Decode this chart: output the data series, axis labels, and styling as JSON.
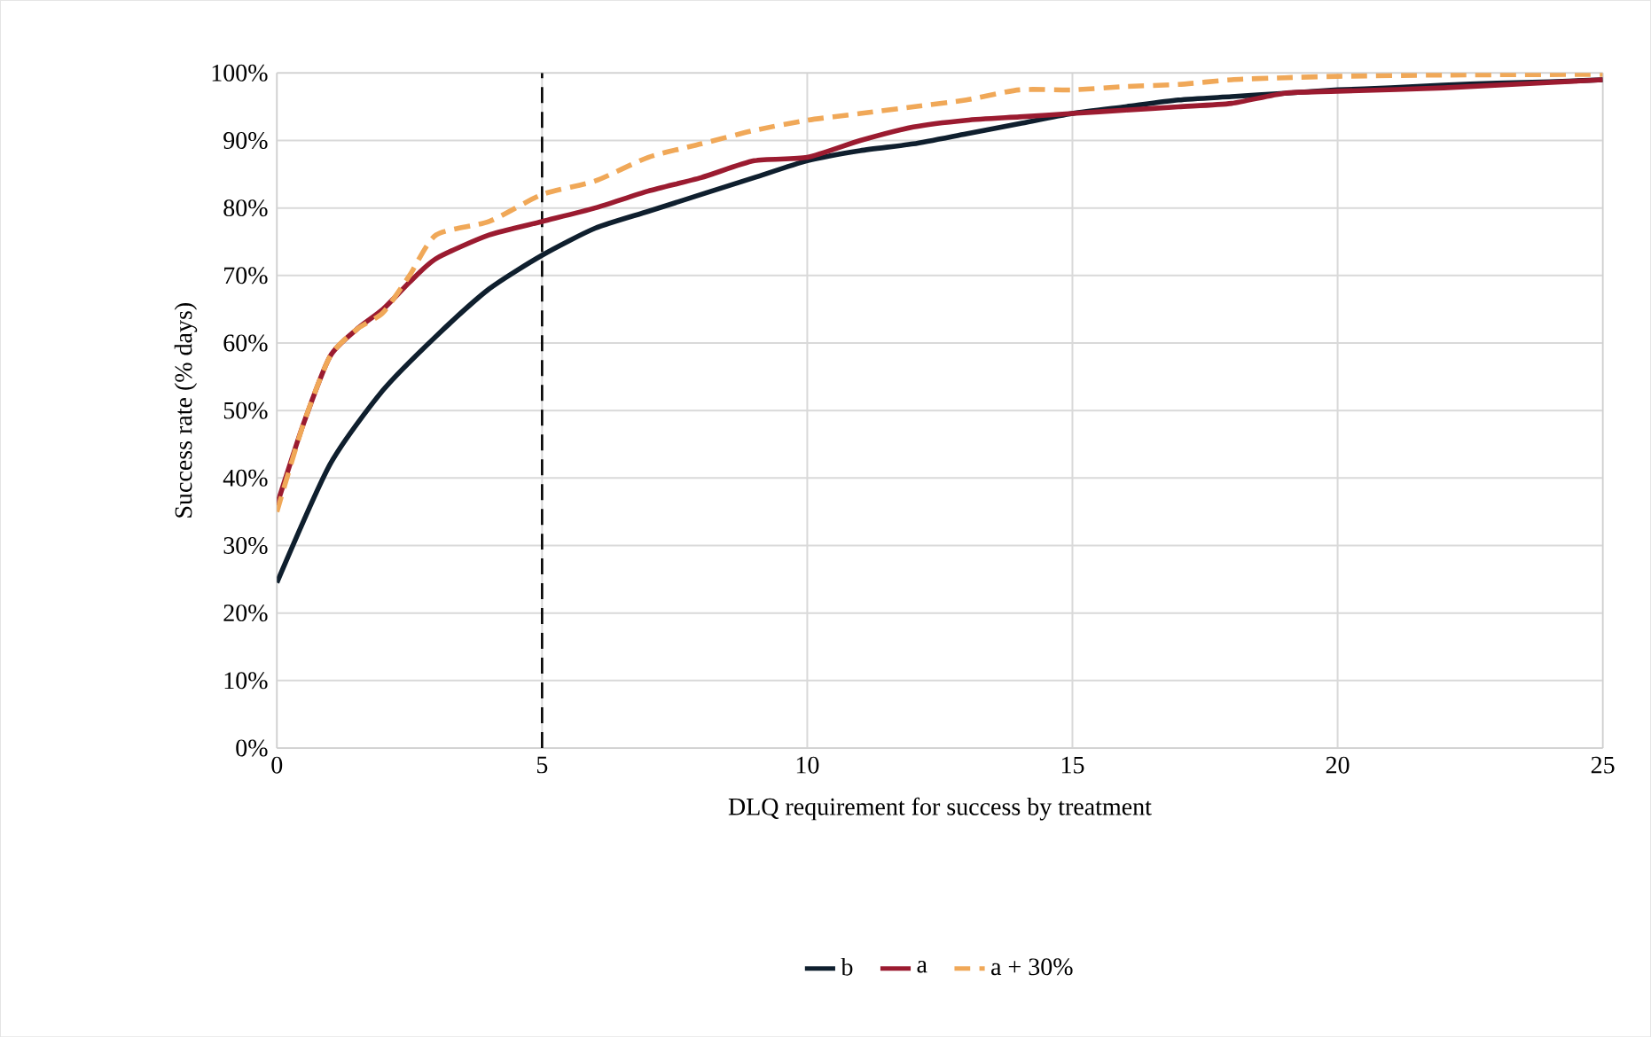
{
  "chart_data": {
    "type": "line",
    "xlabel": "DLQ requirement for success by treatment",
    "ylabel": "Success rate (% days)",
    "xlim": [
      0,
      25
    ],
    "xticks": [
      0,
      5,
      10,
      15,
      20,
      25
    ],
    "ylim": [
      0,
      100
    ],
    "yticks": [
      {
        "value": 0,
        "label": "0%"
      },
      {
        "value": 10,
        "label": "10%"
      },
      {
        "value": 20,
        "label": "20%"
      },
      {
        "value": 30,
        "label": "30%"
      },
      {
        "value": 40,
        "label": "40%"
      },
      {
        "value": 50,
        "label": "50%"
      },
      {
        "value": 60,
        "label": "60%"
      },
      {
        "value": 70,
        "label": "70%"
      },
      {
        "value": 80,
        "label": "80%"
      },
      {
        "value": 90,
        "label": "90%"
      },
      {
        "value": 100,
        "label": "100%"
      }
    ],
    "grid": true,
    "legend": "bottom",
    "ref_lines": [
      {
        "axis": "x",
        "value": 5,
        "color": "#000000",
        "line_style": "dashed"
      }
    ],
    "series": [
      {
        "name": "b",
        "color": "#0f1f2e",
        "line_style": "solid",
        "x": [
          0,
          1,
          2,
          3,
          4,
          5,
          6,
          7,
          8,
          9,
          10,
          11,
          12,
          13,
          14,
          15,
          16,
          17,
          18,
          19,
          20,
          21,
          22,
          23,
          24,
          25
        ],
        "values": [
          24.5,
          42,
          53,
          61,
          68,
          73,
          77,
          79.5,
          82,
          84.5,
          87,
          88.5,
          89.5,
          91,
          92.5,
          94,
          95,
          96,
          96.5,
          97,
          97.5,
          97.8,
          98.2,
          98.5,
          98.7,
          99
        ]
      },
      {
        "name": "a",
        "color": "#9b1b30",
        "line_style": "solid",
        "x": [
          0,
          0.5,
          1,
          1.5,
          2,
          2.5,
          3,
          4,
          5,
          6,
          7,
          8,
          9,
          10,
          11,
          12,
          13,
          14,
          15,
          16,
          17,
          18,
          19,
          20,
          22,
          25
        ],
        "values": [
          36,
          48,
          58,
          62,
          65,
          69,
          72.5,
          76,
          78,
          80,
          82.5,
          84.5,
          87,
          87.5,
          90,
          92,
          93,
          93.5,
          94,
          94.5,
          95,
          95.5,
          97,
          97.3,
          97.8,
          99
        ]
      },
      {
        "name": "a + 30%",
        "color": "#f0a858",
        "line_style": "dashed",
        "x": [
          0,
          0.5,
          1,
          1.5,
          2,
          2.5,
          3,
          4,
          5,
          6,
          7,
          8,
          9,
          10,
          11,
          12,
          13,
          14,
          15,
          16,
          17,
          18,
          19,
          20,
          22,
          25
        ],
        "values": [
          35,
          48,
          58,
          62,
          64.5,
          70,
          76,
          78,
          82,
          84,
          87.5,
          89.5,
          91.5,
          93,
          94,
          95,
          96,
          97.5,
          97.5,
          98,
          98.3,
          99,
          99.3,
          99.5,
          99.7,
          99.8
        ]
      }
    ]
  }
}
